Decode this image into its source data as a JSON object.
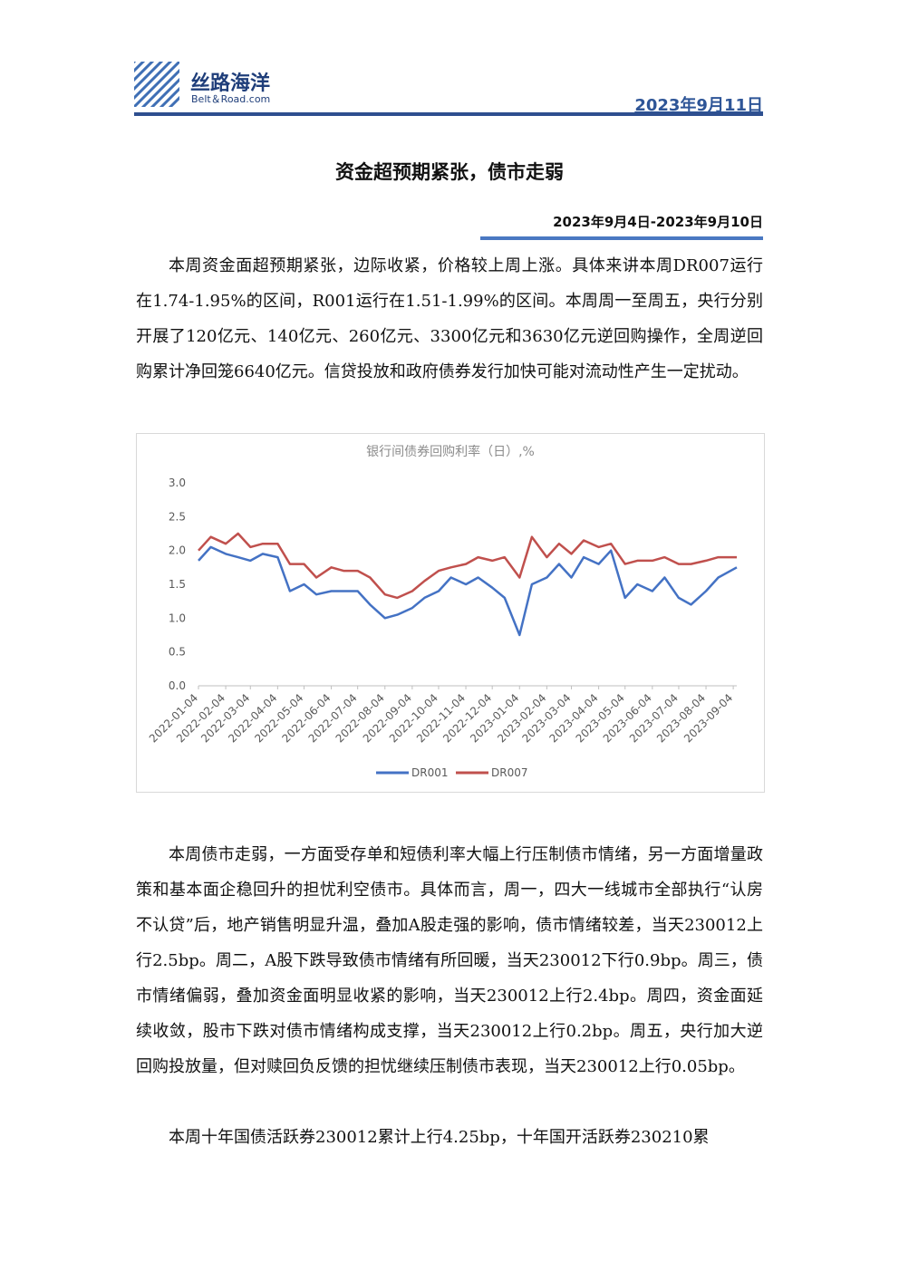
{
  "header": {
    "brand": "丝路海洋",
    "brand_en": "Belt＆Road.com",
    "date": "2023年9月11日"
  },
  "title": "资金超预期紧张，债市走弱",
  "date_range": "2023年9月4日-2023年9月10日",
  "paragraphs": [
    "本周资金面超预期紧张，边际收紧，价格较上周上涨。具体来讲本周DR007运行在1.74-1.95%的区间，R001运行在1.51-1.99%的区间。本周周一至周五，央行分别开展了120亿元、140亿元、260亿元、3300亿元和3630亿元逆回购操作，全周逆回购累计净回笼6640亿元。信贷投放和政府债券发行加快可能对流动性产生一定扰动。",
    "本周债市走弱，一方面受存单和短债利率大幅上行压制债市情绪，另一方面增量政策和基本面企稳回升的担忧利空债市。具体而言，周一，四大一线城市全部执行“认房不认贷”后，地产销售明显升温，叠加A股走强的影响，债市情绪较差，当天230012上行2.5bp。周二，A股下跌导致债市情绪有所回暖，当天230012下行0.9bp。周三，债市情绪偏弱，叠加资金面明显收紧的影响，当天230012上行2.4bp。周四，资金面延续收敛，股市下跌对债市情绪构成支撑，当天230012上行0.2bp。周五，央行加大逆回购投放量，但对赎回负反馈的担忧继续压制债市表现，当天230012上行0.05bp。",
    "本周十年国债活跃券230012累计上行4.25bp，十年国开活跃券230210累"
  ],
  "chart_data": {
    "type": "line",
    "title": "银行间债券回购利率（日）,%",
    "x": [
      "2022-01-04",
      "2022-01-18",
      "2022-02-04",
      "2022-02-18",
      "2022-03-04",
      "2022-03-18",
      "2022-04-04",
      "2022-04-18",
      "2022-05-04",
      "2022-05-18",
      "2022-06-04",
      "2022-06-18",
      "2022-07-04",
      "2022-07-18",
      "2022-08-04",
      "2022-08-18",
      "2022-09-04",
      "2022-09-18",
      "2022-10-04",
      "2022-10-18",
      "2022-11-04",
      "2022-11-18",
      "2022-12-04",
      "2022-12-18",
      "2023-01-04",
      "2023-01-18",
      "2023-02-04",
      "2023-02-18",
      "2023-03-04",
      "2023-03-18",
      "2023-04-04",
      "2023-04-18",
      "2023-05-04",
      "2023-05-18",
      "2023-06-04",
      "2023-06-18",
      "2023-07-04",
      "2023-07-18",
      "2023-08-04",
      "2023-08-18",
      "2023-09-08"
    ],
    "series": [
      {
        "name": "DR001",
        "color": "#4472c4",
        "values": [
          1.85,
          2.05,
          1.95,
          1.9,
          1.85,
          1.95,
          1.9,
          1.4,
          1.5,
          1.35,
          1.4,
          1.4,
          1.4,
          1.2,
          1.0,
          1.05,
          1.15,
          1.3,
          1.4,
          1.6,
          1.5,
          1.6,
          1.45,
          1.3,
          0.75,
          1.5,
          1.6,
          1.8,
          1.6,
          1.9,
          1.8,
          2.0,
          1.3,
          1.5,
          1.4,
          1.6,
          1.3,
          1.2,
          1.4,
          1.6,
          1.75
        ]
      },
      {
        "name": "DR007",
        "color": "#c0504d",
        "values": [
          2.0,
          2.2,
          2.1,
          2.25,
          2.05,
          2.1,
          2.1,
          1.8,
          1.8,
          1.6,
          1.75,
          1.7,
          1.7,
          1.6,
          1.35,
          1.3,
          1.4,
          1.55,
          1.7,
          1.75,
          1.8,
          1.9,
          1.85,
          1.9,
          1.6,
          2.2,
          1.9,
          2.1,
          1.95,
          2.15,
          2.05,
          2.1,
          1.8,
          1.85,
          1.85,
          1.9,
          1.8,
          1.8,
          1.85,
          1.9,
          1.9
        ]
      }
    ],
    "xlim": [
      "2022-01-04",
      "2023-09-08"
    ],
    "xticks": [
      "2022-01-04",
      "2022-02-04",
      "2022-03-04",
      "2022-04-04",
      "2022-05-04",
      "2022-06-04",
      "2022-07-04",
      "2022-08-04",
      "2022-09-04",
      "2022-10-04",
      "2022-11-04",
      "2022-12-04",
      "2023-01-04",
      "2023-02-04",
      "2023-03-04",
      "2023-04-04",
      "2023-05-04",
      "2023-06-04",
      "2023-07-04",
      "2023-08-04",
      "2023-09-04"
    ],
    "ylim": [
      0,
      3
    ],
    "yticks": [
      {
        "value": 0,
        "label": "0.0"
      },
      {
        "value": 0.5,
        "label": "0.5"
      },
      {
        "value": 1,
        "label": "1.0"
      },
      {
        "value": 1.5,
        "label": "1.5"
      },
      {
        "value": 2,
        "label": "2.0"
      },
      {
        "value": 2.5,
        "label": "2.5"
      },
      {
        "value": 3,
        "label": "3.0"
      }
    ],
    "grid": false,
    "legend": "bottom"
  }
}
